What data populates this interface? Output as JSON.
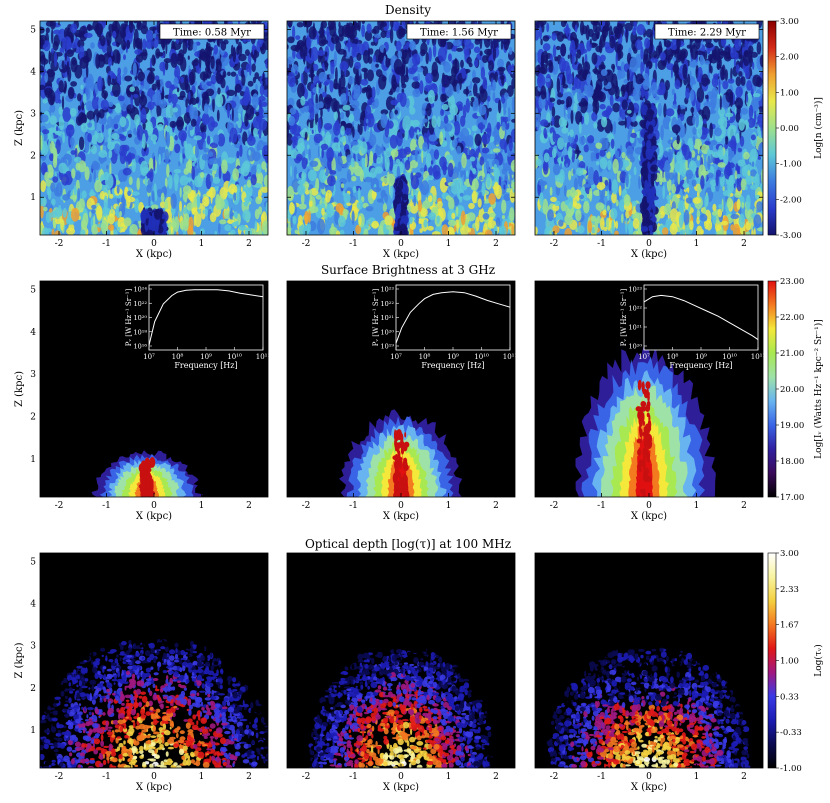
{
  "figure": {
    "rows": [
      {
        "id": "density",
        "title": "Density",
        "colorbar": {
          "label": "Log[n (cm⁻³)]",
          "ticks": [
            "3.00",
            "2.00",
            "1.00",
            "0.00",
            "-1.00",
            "-2.00",
            "-3.00"
          ],
          "range": [
            -3,
            3
          ],
          "colors": [
            "#14146e",
            "#2a3ccc",
            "#3d7be0",
            "#5cc8d8",
            "#9ee08c",
            "#e8e84a",
            "#f0a030",
            "#d42a18",
            "#8c0000"
          ]
        },
        "panels": [
          {
            "time_label": "Time: 0.58 Myr",
            "xlabel": "X (kpc)",
            "ylabel": "Z (kpc)"
          },
          {
            "time_label": "Time: 1.56 Myr",
            "xlabel": "X (kpc)",
            "ylabel": ""
          },
          {
            "time_label": "Time: 2.29 Myr",
            "xlabel": "X (kpc)",
            "ylabel": ""
          }
        ]
      },
      {
        "id": "surface-brightness",
        "title": "Surface Brightness at 3 GHz",
        "colorbar": {
          "label": "Log[Iᵥ (Watts Hz⁻¹ kpc⁻² Sr⁻¹)]",
          "ticks": [
            "23.00",
            "22.00",
            "21.00",
            "20.00",
            "19.00",
            "18.00",
            "17.00"
          ],
          "range": [
            17,
            23
          ],
          "colors": [
            "#000000",
            "#3a0a5a",
            "#3020a0",
            "#3a64e6",
            "#68b4f0",
            "#9ee2a8",
            "#a8e850",
            "#f4e83a",
            "#f47a20",
            "#e01010"
          ]
        },
        "panels": [
          {
            "xlabel": "X (kpc)",
            "ylabel": "Z (kpc)",
            "inset": {
              "ylabel": "Pᵥ [W Hz⁻¹ Sr⁻¹]",
              "xlabel": "Frequency [Hz]",
              "xticks": [
                "10⁷",
                "10⁸",
                "10⁹",
                "10¹⁰",
                "10¹¹"
              ],
              "yticks": [
                "10²⁴",
                "10²²",
                "10²⁰",
                "10¹⁸",
                "10¹⁶"
              ]
            }
          },
          {
            "xlabel": "X (kpc)",
            "ylabel": "",
            "inset": {
              "ylabel": "Pᵥ [W Hz⁻¹ Sr⁻¹]",
              "xlabel": "Frequency [Hz]",
              "xticks": [
                "10⁷",
                "10⁸",
                "10⁹",
                "10¹⁰",
                "10¹¹"
              ],
              "yticks": [
                "10²³",
                "10²²",
                "10²¹",
                "10²⁰",
                "10¹⁹"
              ]
            }
          },
          {
            "xlabel": "X (kpc)",
            "ylabel": "",
            "inset": {
              "ylabel": "Pᵥ [W Hz⁻¹ Sr⁻¹]",
              "xlabel": "Frequency [Hz]",
              "xticks": [
                "10⁷",
                "10⁸",
                "10⁹",
                "10¹⁰",
                "10¹¹"
              ],
              "yticks": [
                "10²³",
                "10²²",
                "10²¹",
                "10²⁰"
              ]
            }
          }
        ]
      },
      {
        "id": "optical-depth",
        "title": "Optical depth [log(τ)] at 100 MHz",
        "colorbar": {
          "label": "Log(τᵥ)",
          "ticks": [
            "3.00",
            "2.33",
            "1.67",
            "1.00",
            "0.33",
            "-0.33",
            "-1.00"
          ],
          "range": [
            -1,
            3
          ],
          "colors": [
            "#000000",
            "#0a0a50",
            "#1c1cb4",
            "#3a3ae6",
            "#a01880",
            "#e01818",
            "#f47820",
            "#f4d040",
            "#f8f4a0",
            "#ffffff"
          ]
        },
        "panels": [
          {
            "xlabel": "X (kpc)",
            "ylabel": "Z (kpc)"
          },
          {
            "xlabel": "X (kpc)",
            "ylabel": ""
          },
          {
            "xlabel": "X (kpc)",
            "ylabel": ""
          }
        ]
      }
    ]
  },
  "chart_data": [
    {
      "type": "heatmap",
      "title": "Density",
      "xlabel": "X (kpc)",
      "ylabel": "Z (kpc)",
      "xlim": [
        -2.4,
        2.4
      ],
      "ylim": [
        0.1,
        5.2
      ],
      "xticks": [
        -2,
        -1,
        0,
        1,
        2
      ],
      "yticks": [
        1,
        2,
        3,
        4,
        5
      ],
      "colorbar_label": "Log[n (cm⁻³)]",
      "colorbar_range": [
        -3,
        3
      ],
      "panel_times": [
        "Time: 0.58 Myr",
        "Time: 1.56 Myr",
        "Time: 2.29 Myr"
      ]
    },
    {
      "type": "heatmap",
      "title": "Surface Brightness at 3 GHz",
      "xlabel": "X (kpc)",
      "ylabel": "Z (kpc)",
      "xlim": [
        -2.4,
        2.4
      ],
      "ylim": [
        0.1,
        5.2
      ],
      "xticks": [
        -2,
        -1,
        0,
        1,
        2
      ],
      "yticks": [
        1,
        2,
        3,
        4,
        5
      ],
      "colorbar_label": "Log[Iᵥ (Watts Hz⁻¹ kpc⁻² Sr⁻¹)]",
      "colorbar_range": [
        17,
        23
      ],
      "insets": [
        {
          "type": "line",
          "xlabel": "Frequency [Hz]",
          "ylabel": "Pᵥ [W Hz⁻¹ Sr⁻¹]",
          "log_x": true,
          "log_y": true,
          "x": [
            7.0,
            7.2,
            7.5,
            7.8,
            8.0,
            8.3,
            8.6,
            9.0,
            9.4,
            9.8,
            10.2,
            10.6,
            11.0
          ],
          "y": [
            18.2,
            20.2,
            21.7,
            22.4,
            22.7,
            22.85,
            22.9,
            22.9,
            22.9,
            22.8,
            22.6,
            22.45,
            22.3
          ]
        },
        {
          "type": "line",
          "xlabel": "Frequency [Hz]",
          "ylabel": "Pᵥ [W Hz⁻¹ Sr⁻¹]",
          "log_x": true,
          "log_y": true,
          "x": [
            7.0,
            7.2,
            7.5,
            7.8,
            8.0,
            8.3,
            8.6,
            9.0,
            9.4,
            9.8,
            10.2,
            10.6,
            11.0
          ],
          "y": [
            19.6,
            20.5,
            21.4,
            21.9,
            22.2,
            22.45,
            22.55,
            22.6,
            22.55,
            22.35,
            22.1,
            21.9,
            21.7
          ]
        },
        {
          "type": "line",
          "xlabel": "Frequency [Hz]",
          "ylabel": "Pᵥ [W Hz⁻¹ Sr⁻¹]",
          "log_x": true,
          "log_y": true,
          "x": [
            7.0,
            7.3,
            7.6,
            8.0,
            8.4,
            8.8,
            9.2,
            9.6,
            10.0,
            10.4,
            10.8,
            11.0
          ],
          "y": [
            22.25,
            22.45,
            22.5,
            22.45,
            22.3,
            22.1,
            21.9,
            21.7,
            21.45,
            21.2,
            20.95,
            20.8
          ]
        }
      ]
    },
    {
      "type": "heatmap",
      "title": "Optical depth [log(τ)] at 100 MHz",
      "xlabel": "X (kpc)",
      "ylabel": "Z (kpc)",
      "xlim": [
        -2.4,
        2.4
      ],
      "ylim": [
        0.1,
        5.2
      ],
      "xticks": [
        -2,
        -1,
        0,
        1,
        2
      ],
      "yticks": [
        1,
        2,
        3,
        4,
        5
      ],
      "colorbar_label": "Log(τᵥ)",
      "colorbar_range": [
        -1,
        3
      ]
    }
  ]
}
